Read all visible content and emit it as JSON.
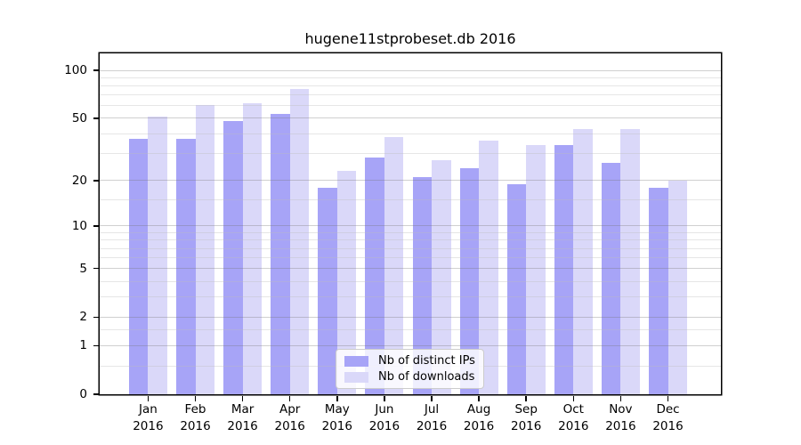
{
  "title": "hugene11stprobeset.db 2016",
  "chart_data": {
    "type": "bar",
    "title": "hugene11stprobeset.db 2016",
    "categories": [
      "Jan",
      "Feb",
      "Mar",
      "Apr",
      "May",
      "Jun",
      "Jul",
      "Aug",
      "Sep",
      "Oct",
      "Nov",
      "Dec"
    ],
    "category_year": "2016",
    "series": [
      {
        "name": "Nb of distinct IPs",
        "color": "#a7a4f7",
        "values": [
          37,
          37,
          48,
          53,
          18,
          28,
          21,
          24,
          19,
          34,
          26,
          18
        ]
      },
      {
        "name": "Nb of downloads",
        "color": "#dad8f9",
        "values": [
          51,
          61,
          62,
          76,
          23,
          38,
          27,
          36,
          34,
          43,
          43,
          20
        ]
      }
    ],
    "yscale": "log1p",
    "yticks": [
      0,
      1,
      2,
      5,
      10,
      20,
      50,
      100
    ],
    "ylim": [
      0,
      127.6
    ],
    "grid": true,
    "legend_position": "inside-bottom-center",
    "colors": {
      "axis": "#000000",
      "grid_major": "#d0d0d0",
      "grid_minor": "#e6e6e6"
    }
  }
}
